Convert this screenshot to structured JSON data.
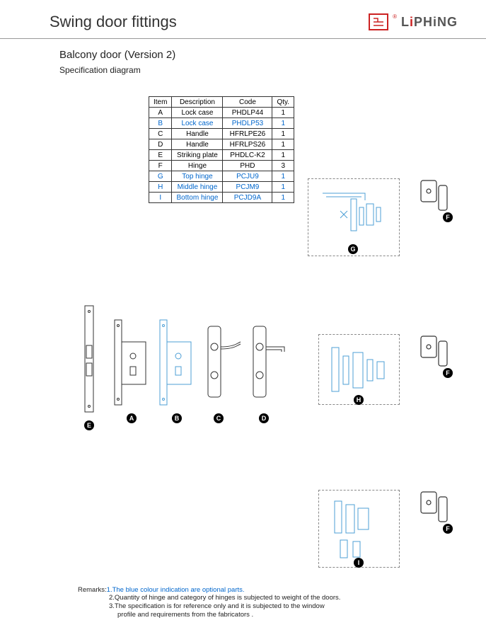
{
  "header": {
    "title": "Swing door fittings",
    "logo_text_prefix": "L",
    "logo_text_mid": "i",
    "logo_text_rest": "PHiNG",
    "reg": "®"
  },
  "sub": {
    "title": "Balcony door (Version 2)",
    "spec": "Specification diagram"
  },
  "table": {
    "headers": {
      "item": "Item",
      "desc": "Description",
      "code": "Code",
      "qty": "Qty."
    },
    "rows": [
      {
        "item": "A",
        "desc": "Lock case",
        "code": "PHDLP44",
        "qty": "1",
        "blue": false
      },
      {
        "item": "B",
        "desc": "Lock case",
        "code": "PHDLP53",
        "qty": "1",
        "blue": true
      },
      {
        "item": "C",
        "desc": "Handle",
        "code": "HFRLPE26",
        "qty": "1",
        "blue": false
      },
      {
        "item": "D",
        "desc": "Handle",
        "code": "HFRLPS26",
        "qty": "1",
        "blue": false
      },
      {
        "item": "E",
        "desc": "Striking plate",
        "code": "PHDLC-K2",
        "qty": "1",
        "blue": false
      },
      {
        "item": "F",
        "desc": "Hinge",
        "code": "PHD",
        "qty": "3",
        "blue": false
      },
      {
        "item": "G",
        "desc": "Top hinge",
        "code": "PCJU9",
        "qty": "1",
        "blue": true
      },
      {
        "item": "H",
        "desc": "Middle hinge",
        "code": "PCJM9",
        "qty": "1",
        "blue": true
      },
      {
        "item": "I",
        "desc": "Bottom hinge",
        "code": "PCJD9A",
        "qty": "1",
        "blue": true
      }
    ]
  },
  "badges": {
    "A": "A",
    "B": "B",
    "C": "C",
    "D": "D",
    "E": "E",
    "F": "F",
    "G": "G",
    "H": "H",
    "I": "I"
  },
  "remarks": {
    "label": "Remarks:",
    "r1": "1.The blue colour indication are optional parts.",
    "r2": "2.Quantity of hinge and category of hinges is subjected to weight of the doors.",
    "r3": "3.The specification is for reference only and it is subjected to the window",
    "r3b": "profile and requirements from the fabricators ."
  },
  "colors": {
    "blue_line": "#4d9fd6",
    "black_line": "#333333",
    "dash": "#888888"
  }
}
